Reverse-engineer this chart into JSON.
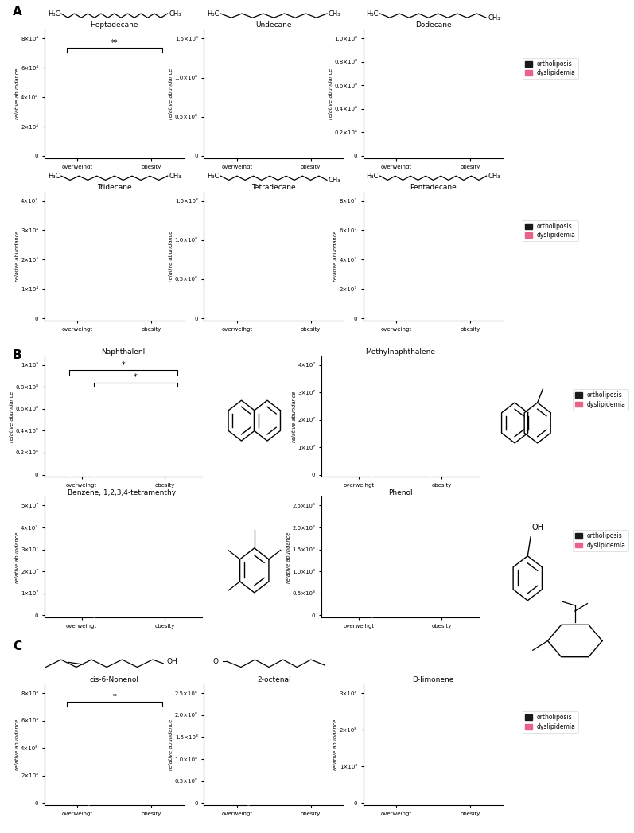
{
  "pink_color": "#E8638A",
  "black_color": "#1a1a1a",
  "legend_ortho": "ortholiposis",
  "legend_dysli": "dyslipidemia",
  "x_labels": [
    "overweihgt",
    "obesity"
  ],
  "section_A_row1": {
    "titles": [
      "Heptadecane",
      "Undecane",
      "Dodecane"
    ],
    "ytick_labels": [
      [
        "0",
        "2×10⁴",
        "4×10⁴",
        "6×10⁴",
        "8×10⁴"
      ],
      [
        "0",
        "0.5×10⁸",
        "1.0×10⁸",
        "1.5×10⁸"
      ],
      [
        "0",
        "0.2×10⁸",
        "0.4×10⁸",
        "0.6×10⁸",
        "0.8×10⁸",
        "1.0×10⁸"
      ]
    ],
    "ymaxes": [
      80000,
      150000000.0,
      100000000.0
    ],
    "n_carbons": [
      17,
      11,
      12
    ],
    "sig": [
      "**",
      null,
      null
    ]
  },
  "section_A_row2": {
    "titles": [
      "Tridecane",
      "Tetradecane",
      "Pentadecane"
    ],
    "ytick_labels": [
      [
        "0",
        "1×10⁴",
        "2×10⁴",
        "3×10⁴",
        "4×10⁴"
      ],
      [
        "0",
        "0.5×10⁸",
        "1.0×10⁸",
        "1.5×10⁸"
      ],
      [
        "0",
        "2×10⁷",
        "4×10⁷",
        "6×10⁷",
        "8×10⁷"
      ]
    ],
    "ymaxes": [
      40000,
      150000000.0,
      80000000.0
    ],
    "n_carbons": [
      13,
      14,
      15
    ],
    "sig": [
      null,
      null,
      null
    ]
  },
  "section_B_row1": {
    "titles": [
      "Naphthalenl",
      "Methylnaphthalene"
    ],
    "ytick_labels": [
      [
        "0",
        "0.2×10⁸",
        "0.4×10⁸",
        "0.6×10⁸",
        "0.8×10⁸",
        "1×10⁸"
      ],
      [
        "0",
        "1×10⁷",
        "2×10⁷",
        "3×10⁷",
        "4×10⁷"
      ]
    ],
    "ymaxes": [
      100000000.0,
      40000000.0
    ],
    "sig": [
      "*",
      null
    ]
  },
  "section_B_row2": {
    "titles": [
      "Benzene, 1,2,3,4-tetramenthyl",
      "Phenol"
    ],
    "ytick_labels": [
      [
        "0",
        "1×10⁷",
        "2×10⁷",
        "3×10⁷",
        "4×10⁷",
        "5×10⁷"
      ],
      [
        "0",
        "0.5×10⁸",
        "1.0×10⁸",
        "1.5×10⁸",
        "2.0×10⁸",
        "2.5×10⁸"
      ]
    ],
    "ymaxes": [
      50000000.0,
      250000000.0
    ],
    "sig": [
      null,
      null
    ]
  },
  "section_C": {
    "titles": [
      "cis-6-Nonenol",
      "2-octenal",
      "D-limonene"
    ],
    "ytick_labels": [
      [
        "0",
        "2×10⁸",
        "4×10⁸",
        "6×10⁸",
        "8×10⁸"
      ],
      [
        "0",
        "0.5×10⁸",
        "1.0×10⁸",
        "1.5×10⁸",
        "2.0×10⁸",
        "2.5×10⁸"
      ],
      [
        "0",
        "1×10⁸",
        "2×10⁸",
        "3×10⁸"
      ]
    ],
    "ymaxes": [
      800000000.0,
      250000000.0,
      300000000.0
    ],
    "sig": [
      "*",
      null,
      null
    ]
  }
}
